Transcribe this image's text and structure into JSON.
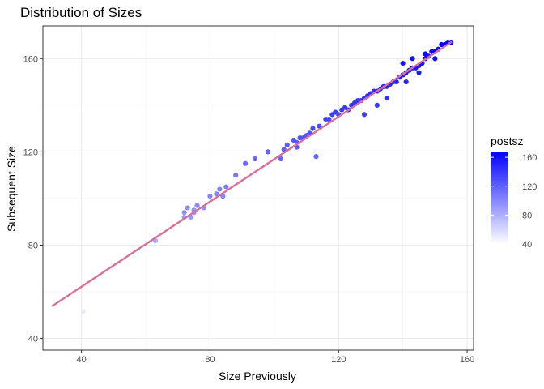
{
  "chart_data": {
    "type": "scatter",
    "title": "Distribution of Sizes",
    "xlabel": "Size Previously",
    "ylabel": "Subsequent Size",
    "xlim": [
      28,
      162
    ],
    "ylim": [
      35,
      174
    ],
    "xticks": [
      40,
      80,
      120,
      160
    ],
    "yticks": [
      40,
      80,
      120,
      160
    ],
    "grid": true,
    "color_var": "postsz",
    "color_range": [
      40,
      168
    ],
    "color_low": "#ffffff",
    "color_high": "#0000ff",
    "legend": {
      "title": "postsz",
      "placement": "right",
      "labels": [
        "160",
        "120",
        "80",
        "40"
      ],
      "values": [
        160,
        120,
        80,
        40
      ]
    },
    "fit_line": {
      "color": "#d97099",
      "x": [
        31,
        155
      ],
      "y": [
        54,
        167
      ]
    },
    "points": [
      [
        40.5,
        51.5
      ],
      [
        63,
        82
      ],
      [
        72,
        92
      ],
      [
        72,
        94
      ],
      [
        73,
        96
      ],
      [
        74,
        92
      ],
      [
        75,
        95
      ],
      [
        75,
        94
      ],
      [
        76,
        97
      ],
      [
        78,
        96
      ],
      [
        80,
        101
      ],
      [
        82,
        102
      ],
      [
        83,
        104
      ],
      [
        84,
        101
      ],
      [
        85,
        105
      ],
      [
        88,
        110
      ],
      [
        91,
        115
      ],
      [
        94,
        117
      ],
      [
        98,
        120
      ],
      [
        102,
        117
      ],
      [
        103,
        121
      ],
      [
        104,
        123
      ],
      [
        106,
        125
      ],
      [
        107,
        122
      ],
      [
        107,
        124
      ],
      [
        108,
        126
      ],
      [
        109,
        126
      ],
      [
        110,
        127
      ],
      [
        111,
        128
      ],
      [
        112,
        130
      ],
      [
        113,
        118
      ],
      [
        114,
        131
      ],
      [
        116,
        134
      ],
      [
        117,
        134
      ],
      [
        118,
        136
      ],
      [
        119,
        137
      ],
      [
        120,
        136
      ],
      [
        121,
        138
      ],
      [
        122,
        139
      ],
      [
        123,
        138
      ],
      [
        124,
        140
      ],
      [
        125,
        141
      ],
      [
        126,
        142
      ],
      [
        127,
        142
      ],
      [
        128,
        143
      ],
      [
        129,
        144
      ],
      [
        130,
        145
      ],
      [
        131,
        146
      ],
      [
        132,
        146
      ],
      [
        133,
        147
      ],
      [
        134,
        148
      ],
      [
        135,
        148
      ],
      [
        136,
        149
      ],
      [
        137,
        150
      ],
      [
        138,
        150
      ],
      [
        139,
        152
      ],
      [
        140,
        153
      ],
      [
        141,
        154
      ],
      [
        142,
        155
      ],
      [
        143,
        156
      ],
      [
        144,
        156
      ],
      [
        145,
        157
      ],
      [
        146,
        158
      ],
      [
        147,
        160
      ],
      [
        148,
        161
      ],
      [
        149,
        163
      ],
      [
        150,
        163
      ],
      [
        151,
        164
      ],
      [
        152,
        166
      ],
      [
        153,
        166
      ],
      [
        154,
        167
      ],
      [
        155,
        167
      ],
      [
        132,
        140
      ],
      [
        128,
        136
      ],
      [
        135,
        143
      ],
      [
        141,
        150
      ],
      [
        145,
        154
      ],
      [
        150,
        160
      ],
      [
        147,
        162
      ],
      [
        143,
        160
      ],
      [
        140,
        158
      ]
    ]
  }
}
